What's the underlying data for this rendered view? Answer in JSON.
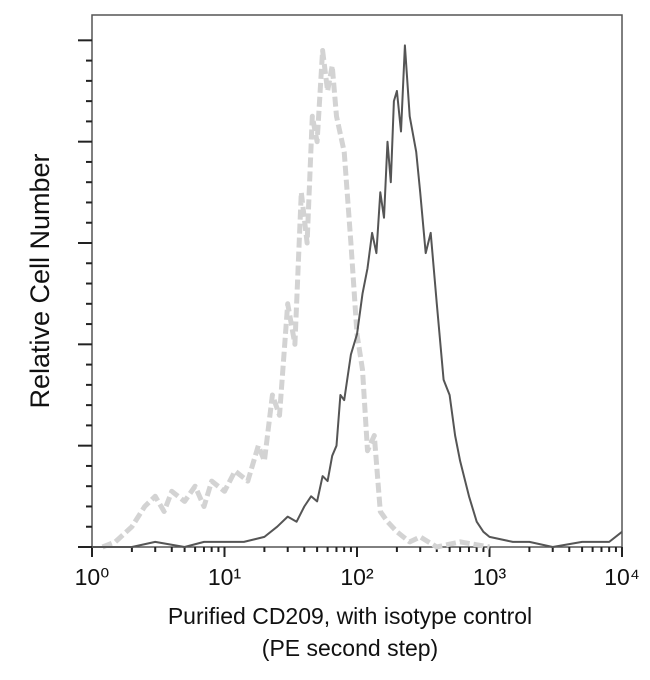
{
  "chart_data": {
    "type": "line",
    "ylabel": "Relative Cell Number",
    "xlabel": [
      "Purified CD209, with isotype control",
      "(PE second step)"
    ],
    "xscale": "log",
    "xlim": [
      1,
      10000
    ],
    "xticks": [
      {
        "value": 1,
        "label": "10⁰"
      },
      {
        "value": 10,
        "label": "10¹"
      },
      {
        "value": 100,
        "label": "10²"
      },
      {
        "value": 1000,
        "label": "10³"
      },
      {
        "value": 10000,
        "label": "10⁴"
      }
    ],
    "xminorticks": [
      2,
      3,
      4,
      5,
      6,
      7,
      8,
      9,
      20,
      30,
      40,
      50,
      60,
      70,
      80,
      90,
      200,
      300,
      400,
      500,
      600,
      700,
      800,
      900,
      2000,
      3000,
      4000,
      5000,
      6000,
      7000,
      8000,
      9000
    ],
    "ylim": [
      0,
      105
    ],
    "yticks": [
      0,
      20,
      40,
      60,
      80,
      100
    ],
    "yminorticks": [
      4,
      8,
      12,
      16,
      24,
      28,
      32,
      36,
      44,
      48,
      52,
      56,
      64,
      68,
      72,
      76,
      84,
      88,
      92,
      96
    ],
    "series": [
      {
        "color": "#d3d3d3",
        "dashed": true,
        "x": [
          1.2,
          1.5,
          2,
          2.5,
          3,
          3.5,
          4,
          5,
          6,
          7,
          8,
          10,
          12,
          15,
          18,
          20,
          23,
          26,
          30,
          34,
          38,
          42,
          46,
          50,
          55,
          60,
          65,
          70,
          80,
          90,
          100,
          110,
          120,
          135,
          150,
          170,
          200,
          250,
          300,
          400,
          600,
          1000
        ],
        "values": [
          0,
          1,
          4,
          8,
          10,
          7,
          11,
          9,
          12,
          8,
          13,
          11,
          15,
          13,
          20,
          17,
          30,
          26,
          48,
          40,
          70,
          60,
          85,
          80,
          98,
          90,
          95,
          85,
          78,
          60,
          42,
          35,
          19,
          22,
          7,
          5,
          3,
          1,
          2,
          0,
          1,
          0
        ]
      },
      {
        "color": "#555555",
        "dashed": false,
        "x": [
          1,
          2,
          3,
          5,
          7,
          10,
          14,
          20,
          25,
          30,
          35,
          40,
          45,
          50,
          55,
          60,
          65,
          70,
          75,
          80,
          90,
          100,
          110,
          120,
          130,
          140,
          150,
          160,
          170,
          180,
          190,
          200,
          215,
          230,
          250,
          280,
          300,
          330,
          360,
          400,
          450,
          500,
          550,
          600,
          700,
          800,
          900,
          1000,
          1500,
          2000,
          3000,
          5000,
          8000,
          10000
        ],
        "values": [
          0,
          0,
          1,
          0,
          1,
          1,
          1,
          2,
          4,
          6,
          5,
          8,
          10,
          9,
          14,
          13,
          18,
          20,
          30,
          29,
          38,
          42,
          50,
          55,
          62,
          58,
          70,
          65,
          80,
          72,
          88,
          90,
          82,
          99,
          85,
          78,
          70,
          58,
          62,
          48,
          33,
          30,
          22,
          17,
          10,
          5,
          3,
          2,
          1,
          1,
          0,
          1,
          1,
          3
        ]
      }
    ]
  }
}
